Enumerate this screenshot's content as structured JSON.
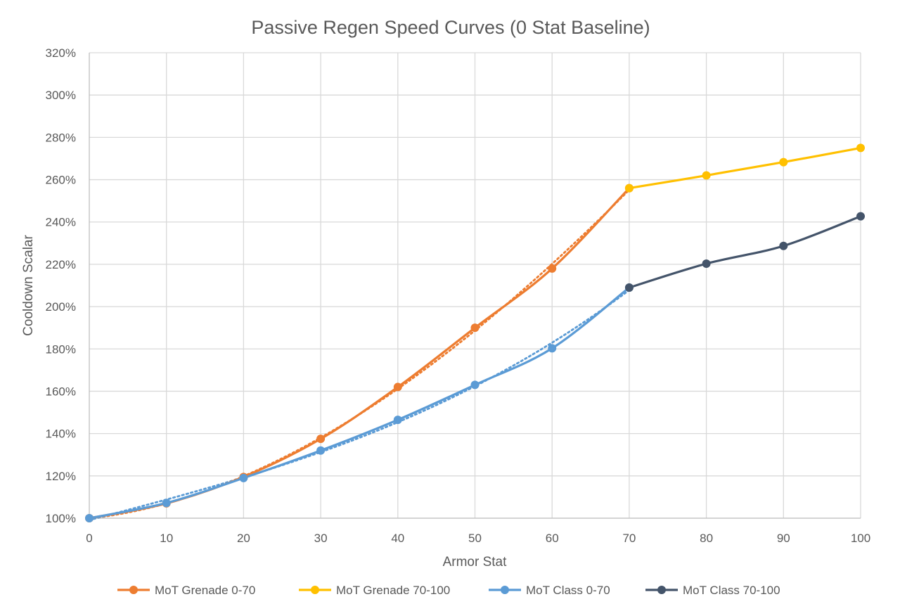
{
  "chart_data": {
    "type": "line",
    "title": "Passive Regen Speed Curves (0 Stat Baseline)",
    "xlabel": "Armor Stat",
    "ylabel": "Cooldown Scalar",
    "xlim": [
      0,
      100
    ],
    "ylim": [
      100,
      320
    ],
    "x_ticks": [
      0,
      10,
      20,
      30,
      40,
      50,
      60,
      70,
      80,
      90,
      100
    ],
    "y_ticks": [
      100,
      120,
      140,
      160,
      180,
      200,
      220,
      240,
      260,
      280,
      300,
      320
    ],
    "y_tick_format": "percent",
    "grid": true,
    "legend_position": "bottom",
    "series": [
      {
        "name": "MoT Grenade 0-70",
        "color": "#ED7D31",
        "x": [
          0,
          10,
          20,
          30,
          40,
          50,
          60,
          70
        ],
        "values": [
          100,
          107,
          119.5,
          137.5,
          162,
          190,
          218,
          256
        ],
        "trendline": true
      },
      {
        "name": "MoT Grenade 70-100",
        "color": "#FFC000",
        "x": [
          70,
          80,
          90,
          100
        ],
        "values": [
          256,
          262,
          268.3,
          275
        ],
        "trendline": false
      },
      {
        "name": "MoT Class 0-70",
        "color": "#5B9BD5",
        "x": [
          0,
          10,
          20,
          30,
          40,
          50,
          60,
          70
        ],
        "values": [
          100,
          107.2,
          119,
          132,
          146.5,
          163,
          180.3,
          209
        ],
        "trendline": true
      },
      {
        "name": "MoT Class 70-100",
        "color": "#44546A",
        "x": [
          70,
          80,
          90,
          100
        ],
        "values": [
          209,
          220.3,
          228.7,
          242.7
        ],
        "trendline": false
      }
    ]
  }
}
